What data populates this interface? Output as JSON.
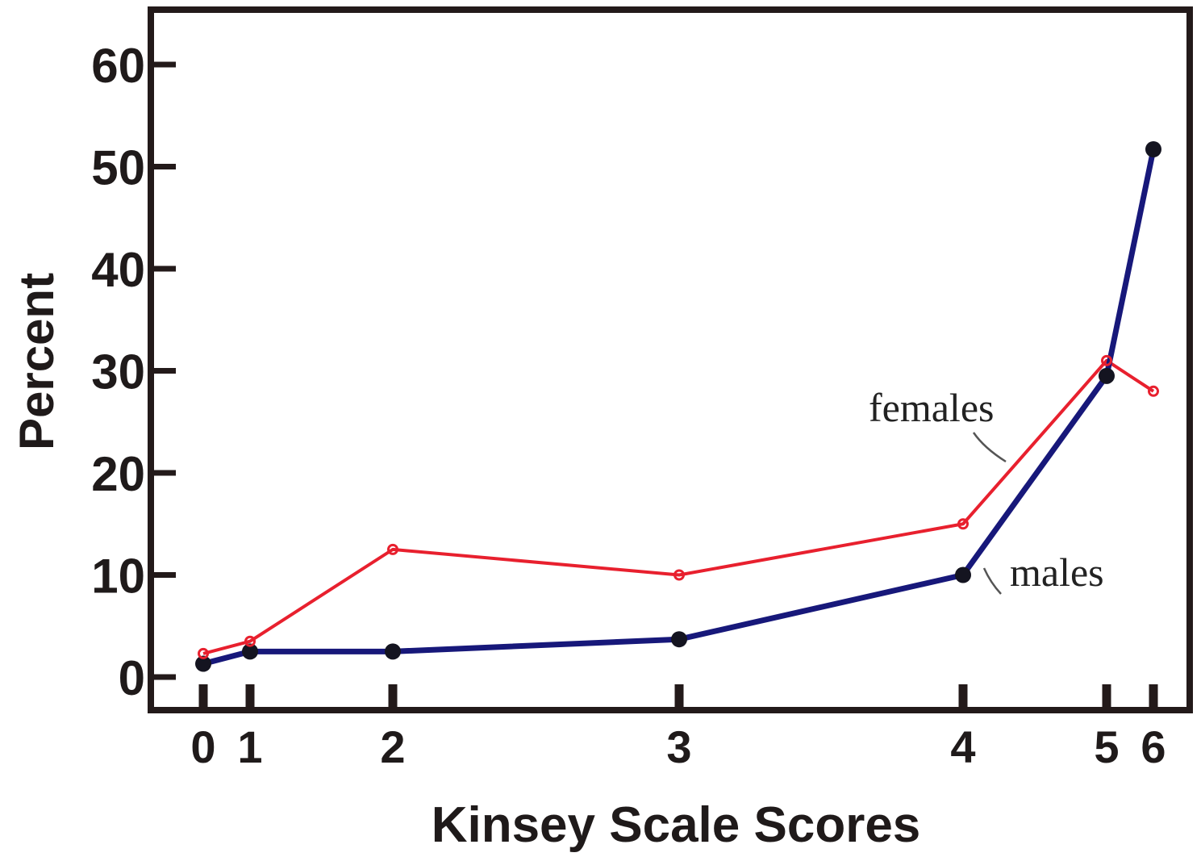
{
  "chart_data": {
    "type": "line",
    "title": "",
    "xlabel": "Kinsey Scale Scores",
    "ylabel": "Percent",
    "ylim": [
      0,
      65
    ],
    "xlim": [
      0,
      6
    ],
    "x_tick_positions": [
      0,
      0.3,
      1.3,
      3.3,
      5.3,
      6.3,
      6.6
    ],
    "x_ticks": [
      "0",
      "1",
      "2",
      "3",
      "4",
      "5",
      "6"
    ],
    "y_ticks": [
      0,
      10,
      20,
      30,
      40,
      50,
      60
    ],
    "grid": false,
    "legend": "none",
    "colors": {
      "females": "#e8202e",
      "males": "#17187a",
      "axis": "#231a1a",
      "arrow": "#555555"
    },
    "series": [
      {
        "name": "females",
        "x": [
          "0",
          "1",
          "2",
          "3",
          "4",
          "5",
          "6"
        ],
        "values": [
          2.3,
          3.5,
          12.5,
          10,
          15,
          31,
          28
        ]
      },
      {
        "name": "males",
        "x": [
          "0",
          "1",
          "2",
          "3",
          "4",
          "5",
          "6"
        ],
        "values": [
          1.3,
          2.5,
          2.5,
          3.7,
          10,
          29.5,
          51.7
        ]
      }
    ],
    "annotations": [
      {
        "text": "females",
        "series": "females"
      },
      {
        "text": "males",
        "series": "males"
      }
    ]
  }
}
